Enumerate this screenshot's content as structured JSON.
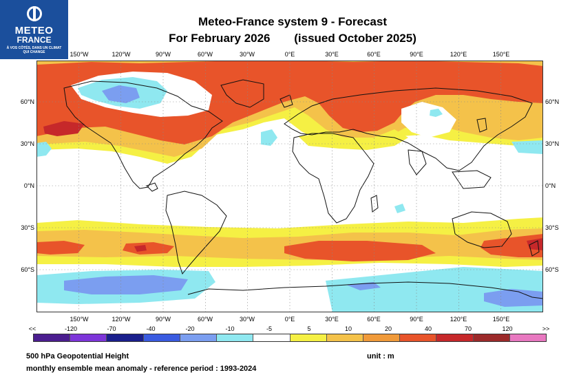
{
  "logo": {
    "line1": "METEO",
    "line2": "FRANCE",
    "tagline": "À VOS CÔTÉS, DANS UN CLIMAT QUI CHANGE"
  },
  "title": {
    "line1": "Meteo-France system 9  -  Forecast",
    "line2a": "For February 2026",
    "line2b": "(issued October 2025)"
  },
  "lon_labels": [
    "150°W",
    "120°W",
    "90°W",
    "60°W",
    "30°W",
    "0°E",
    "30°E",
    "60°E",
    "90°E",
    "120°E",
    "150°E"
  ],
  "lat_labels": [
    "60°N",
    "30°N",
    "0°N",
    "30°S",
    "60°S"
  ],
  "colorbar": {
    "labels": [
      "<<",
      "-120",
      "-70",
      "-40",
      "-20",
      "-10",
      "-5",
      "5",
      "10",
      "20",
      "40",
      "70",
      "120",
      ">>"
    ],
    "colors": [
      "#4b1e8f",
      "#7d35d9",
      "#1a1f8c",
      "#3a5be0",
      "#7b9ef0",
      "#8fe8f0",
      "#ffffff",
      "#f5f044",
      "#f4c24a",
      "#f09a3a",
      "#e8542a",
      "#c6282a",
      "#9c2a2a",
      "#e878c0"
    ]
  },
  "footer": {
    "line1": "500 hPa Geopotential Height",
    "line2": "monthly ensemble mean anomaly - reference period : 1993-2024",
    "unit": "unit : m"
  }
}
